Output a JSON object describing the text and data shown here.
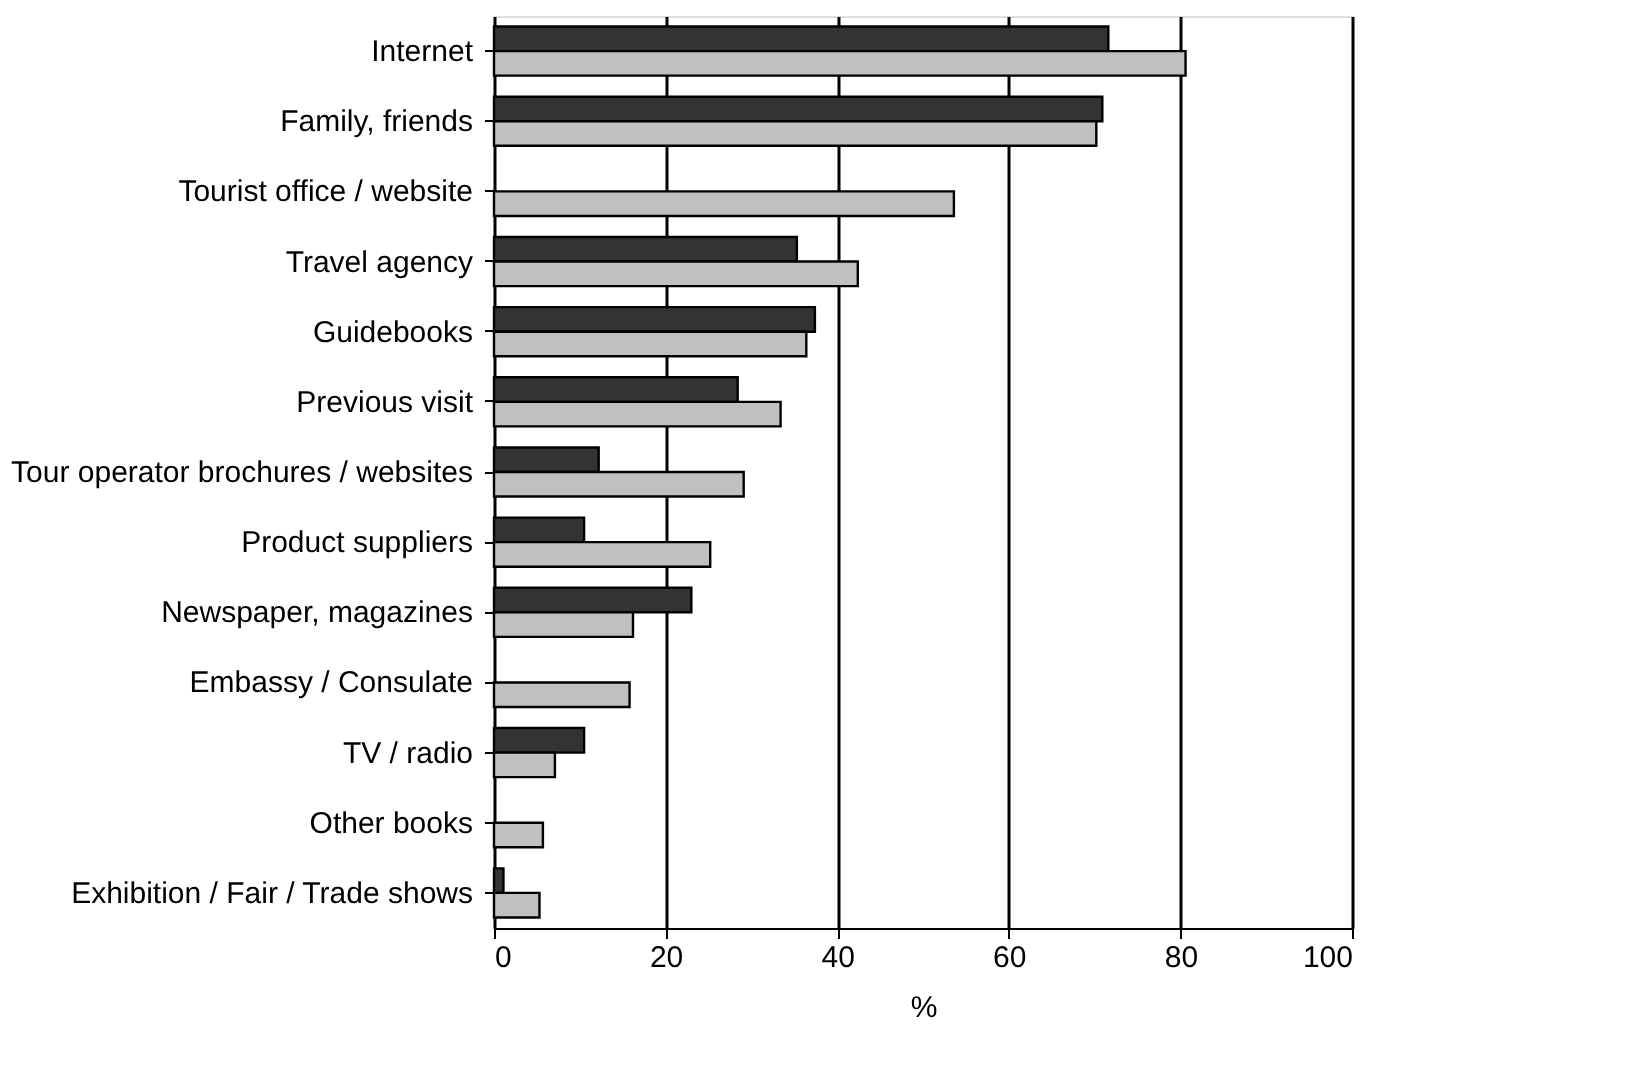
{
  "chart_data": {
    "type": "bar",
    "orientation": "horizontal",
    "xlabel": "%",
    "categories": [
      "Internet",
      "Family, friends",
      "Tourist office / website",
      "Travel agency",
      "Guidebooks",
      "Previous visit",
      "Tour operator brochures / websites",
      "Product suppliers",
      "Newspaper, magazines",
      "Embassy / Consulate",
      "TV / radio",
      "Other books",
      "Exhibition / Fair / Trade shows"
    ],
    "series": [
      {
        "color": "#333333",
        "values": [
          71.6,
          70.9,
          null,
          35.3,
          37.4,
          28.4,
          12.2,
          10.5,
          23.0,
          null,
          10.5,
          null,
          1.1
        ]
      },
      {
        "color": "#c0c0c0",
        "values": [
          80.6,
          70.2,
          53.6,
          42.4,
          36.4,
          33.4,
          29.1,
          25.2,
          16.2,
          15.8,
          7.1,
          5.7,
          5.3
        ]
      }
    ],
    "xlim": [
      0,
      100
    ],
    "xticks": [
      0,
      20,
      40,
      60,
      80,
      100
    ],
    "grid": "x",
    "legend": false
  }
}
